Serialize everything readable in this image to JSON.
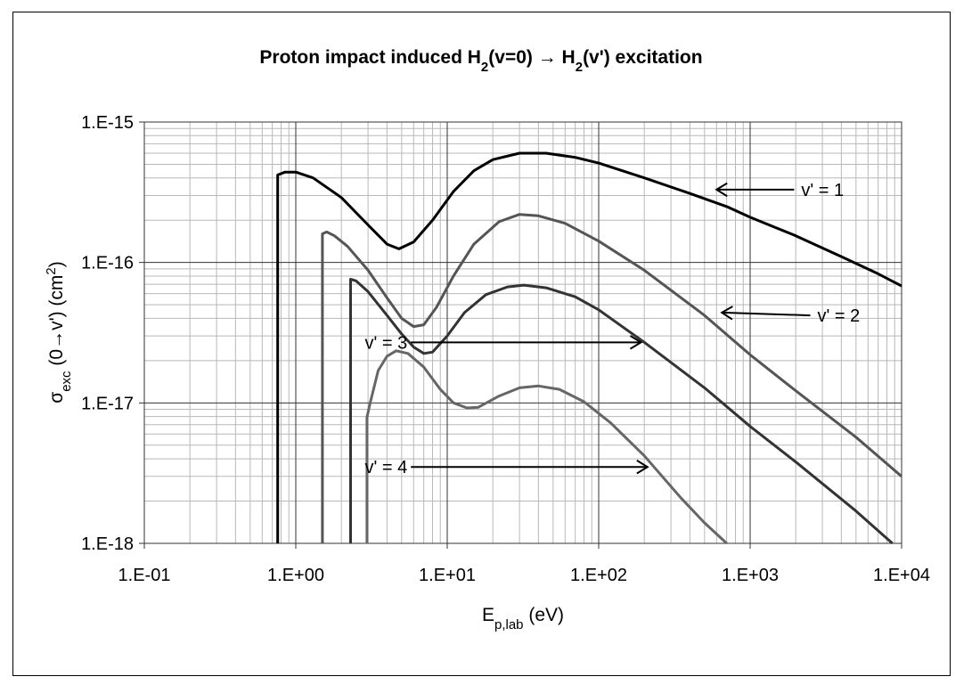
{
  "chart_data": {
    "type": "line",
    "title_parts": [
      "Proton impact induced H",
      "2",
      "(v=0) → H",
      "2",
      "(v') excitation"
    ],
    "xlabel_parts": [
      "E",
      "p,lab",
      " (eV)"
    ],
    "ylabel_parts": [
      "σ",
      "exc",
      " (0→v') (cm",
      "2",
      ")"
    ],
    "x_scale": "log",
    "y_scale": "log",
    "xlim": [
      0.1,
      10000
    ],
    "ylim": [
      1e-18,
      1e-15
    ],
    "x_ticks": [
      {
        "value": 0.1,
        "label": "1.E-01"
      },
      {
        "value": 1,
        "label": "1.E+00"
      },
      {
        "value": 10,
        "label": "1.E+01"
      },
      {
        "value": 100,
        "label": "1.E+02"
      },
      {
        "value": 1000,
        "label": "1.E+03"
      },
      {
        "value": 10000,
        "label": "1.E+04"
      }
    ],
    "y_ticks": [
      {
        "value": 1e-18,
        "label": "1.E-18"
      },
      {
        "value": 1e-17,
        "label": "1.E-17"
      },
      {
        "value": 1e-16,
        "label": "1.E-16"
      },
      {
        "value": 1e-15,
        "label": "1.E-15"
      }
    ],
    "grid": true,
    "legend": "none",
    "series": [
      {
        "label": "v' = 1",
        "color": "#000000",
        "points": [
          [
            0.76,
            1e-18
          ],
          [
            0.76,
            4.2e-16
          ],
          [
            0.85,
            4.4e-16
          ],
          [
            1.0,
            4.4e-16
          ],
          [
            1.3,
            4e-16
          ],
          [
            2.0,
            2.9e-16
          ],
          [
            3.0,
            1.85e-16
          ],
          [
            4.0,
            1.35e-16
          ],
          [
            4.8,
            1.25e-16
          ],
          [
            6.0,
            1.4e-16
          ],
          [
            8.0,
            2e-16
          ],
          [
            11.0,
            3.2e-16
          ],
          [
            15.0,
            4.5e-16
          ],
          [
            20.0,
            5.4e-16
          ],
          [
            30.0,
            6e-16
          ],
          [
            45.0,
            6e-16
          ],
          [
            70.0,
            5.6e-16
          ],
          [
            100.0,
            5.1e-16
          ],
          [
            200.0,
            4e-16
          ],
          [
            400.0,
            3.1e-16
          ],
          [
            700.0,
            2.5e-16
          ],
          [
            1000.0,
            2.1e-16
          ],
          [
            2000.0,
            1.55e-16
          ],
          [
            4000.0,
            1.1e-16
          ],
          [
            7000.0,
            8.3e-17
          ],
          [
            10000.0,
            6.8e-17
          ]
        ]
      },
      {
        "label": "v' = 2",
        "color": "#555555",
        "points": [
          [
            1.5,
            1e-18
          ],
          [
            1.5,
            1.6e-16
          ],
          [
            1.6,
            1.65e-16
          ],
          [
            1.8,
            1.55e-16
          ],
          [
            2.2,
            1.3e-16
          ],
          [
            3.0,
            8.8e-17
          ],
          [
            4.0,
            5.6e-17
          ],
          [
            5.0,
            4e-17
          ],
          [
            6.0,
            3.5e-17
          ],
          [
            7.0,
            3.6e-17
          ],
          [
            8.5,
            4.8e-17
          ],
          [
            11.0,
            8e-17
          ],
          [
            15.0,
            1.35e-16
          ],
          [
            22.0,
            1.95e-16
          ],
          [
            30.0,
            2.2e-16
          ],
          [
            40.0,
            2.15e-16
          ],
          [
            60.0,
            1.9e-16
          ],
          [
            100.0,
            1.42e-16
          ],
          [
            200.0,
            8.8e-17
          ],
          [
            500.0,
            4.2e-17
          ],
          [
            1000.0,
            2.2e-17
          ],
          [
            2000.0,
            1.22e-17
          ],
          [
            5000.0,
            5.7e-18
          ],
          [
            10000.0,
            3e-18
          ]
        ]
      },
      {
        "label": "v' = 3",
        "color": "#333333",
        "points": [
          [
            2.3,
            1e-18
          ],
          [
            2.3,
            7.6e-17
          ],
          [
            2.5,
            7.4e-17
          ],
          [
            3.0,
            6.2e-17
          ],
          [
            4.0,
            4.2e-17
          ],
          [
            5.0,
            3.1e-17
          ],
          [
            6.0,
            2.5e-17
          ],
          [
            7.0,
            2.25e-17
          ],
          [
            8.0,
            2.3e-17
          ],
          [
            10.0,
            3e-17
          ],
          [
            13.0,
            4.4e-17
          ],
          [
            18.0,
            5.9e-17
          ],
          [
            25.0,
            6.7e-17
          ],
          [
            32.0,
            6.9e-17
          ],
          [
            45.0,
            6.6e-17
          ],
          [
            70.0,
            5.7e-17
          ],
          [
            100.0,
            4.6e-17
          ],
          [
            200.0,
            2.7e-17
          ],
          [
            500.0,
            1.28e-17
          ],
          [
            1000.0,
            6.8e-18
          ],
          [
            2000.0,
            3.8e-18
          ],
          [
            5000.0,
            1.7e-18
          ],
          [
            8700.0,
            1e-18
          ]
        ]
      },
      {
        "label": "v' = 4",
        "color": "#666666",
        "points": [
          [
            2.95,
            1e-18
          ],
          [
            2.95,
            7.9e-18
          ],
          [
            3.1,
            1e-17
          ],
          [
            3.5,
            1.7e-17
          ],
          [
            4.0,
            2.15e-17
          ],
          [
            4.6,
            2.35e-17
          ],
          [
            5.5,
            2.25e-17
          ],
          [
            7.0,
            1.8e-17
          ],
          [
            9.0,
            1.25e-17
          ],
          [
            11.0,
            1e-17
          ],
          [
            13.5,
            9.2e-18
          ],
          [
            16.0,
            9.3e-18
          ],
          [
            22.0,
            1.12e-17
          ],
          [
            30.0,
            1.28e-17
          ],
          [
            40.0,
            1.32e-17
          ],
          [
            55.0,
            1.25e-17
          ],
          [
            80.0,
            1.02e-17
          ],
          [
            120.0,
            7.2e-18
          ],
          [
            200.0,
            4.2e-18
          ],
          [
            350.0,
            2.1e-18
          ],
          [
            500.0,
            1.4e-18
          ],
          [
            700.0,
            1e-18
          ]
        ]
      }
    ],
    "annotations": [
      {
        "text": "v' = 1",
        "x": 1800,
        "y": 3.3e-16,
        "arrow_to": [
          600,
          3.3e-16
        ]
      },
      {
        "text": "v' = 2",
        "x": 2300,
        "y": 4.2e-17,
        "arrow_to": [
          650,
          4.4e-17
        ]
      },
      {
        "text": "v' = 3",
        "x": 5.6,
        "y": 2.7e-17,
        "arrow_to": [
          190,
          2.7e-17
        ]
      },
      {
        "text": "v' = 4",
        "x": 5.6,
        "y": 3.5e-18,
        "arrow_to": [
          210,
          3.5e-18
        ]
      }
    ]
  }
}
